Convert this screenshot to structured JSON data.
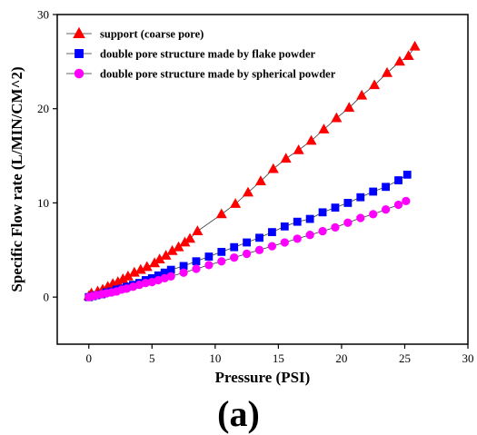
{
  "panel_label": "(a)",
  "chart_data": {
    "type": "scatter",
    "xlabel": "Pressure (PSI)",
    "ylabel": "Specific Flow rate (L/MIN/CM^2)",
    "xlim": [
      -2.5,
      30
    ],
    "ylim": [
      -5,
      30
    ],
    "xticks": [
      0,
      5,
      10,
      15,
      20,
      25,
      30
    ],
    "yticks": [
      0,
      10,
      20,
      30
    ],
    "grid": false,
    "legend_position": "top-left",
    "series": [
      {
        "name": "support (coarse pore)",
        "color": "#ff0000",
        "marker": "triangle",
        "x": [
          0,
          0.2,
          0.7,
          1.1,
          1.5,
          1.9,
          2.3,
          2.7,
          3.1,
          3.6,
          4.1,
          4.6,
          5.2,
          5.6,
          6.1,
          6.6,
          7.1,
          7.6,
          8.0,
          8.6,
          10.5,
          11.6,
          12.6,
          13.6,
          14.6,
          15.6,
          16.6,
          17.6,
          18.6,
          19.6,
          20.6,
          21.6,
          22.6,
          23.6,
          24.6,
          25.3,
          25.8
        ],
        "y": [
          0.1,
          0.4,
          0.6,
          0.8,
          1.1,
          1.4,
          1.6,
          1.9,
          2.2,
          2.6,
          2.9,
          3.2,
          3.6,
          4.0,
          4.4,
          4.9,
          5.3,
          5.8,
          6.2,
          7.0,
          8.8,
          9.9,
          11.1,
          12.3,
          13.6,
          14.7,
          15.6,
          16.6,
          17.8,
          19.0,
          20.1,
          21.4,
          22.5,
          23.8,
          25.0,
          25.6,
          26.6
        ]
      },
      {
        "name": "double pore structure made by flake powder",
        "color": "#0000ff",
        "marker": "square",
        "x": [
          0,
          0.3,
          0.6,
          1.0,
          1.4,
          1.8,
          2.2,
          2.6,
          3.0,
          3.5,
          4.0,
          4.5,
          5.0,
          5.5,
          6.0,
          6.5,
          7.5,
          8.5,
          9.5,
          10.5,
          11.5,
          12.5,
          13.5,
          14.5,
          15.5,
          16.5,
          17.5,
          18.5,
          19.5,
          20.5,
          21.5,
          22.5,
          23.5,
          24.5,
          25.2
        ],
        "y": [
          0,
          0.1,
          0.2,
          0.3,
          0.5,
          0.6,
          0.8,
          0.9,
          1.1,
          1.3,
          1.5,
          1.8,
          2.0,
          2.3,
          2.6,
          2.9,
          3.3,
          3.8,
          4.3,
          4.8,
          5.3,
          5.8,
          6.3,
          6.9,
          7.5,
          8.0,
          8.3,
          9.0,
          9.5,
          10.0,
          10.6,
          11.2,
          11.7,
          12.4,
          13.0
        ]
      },
      {
        "name": "double pore structure made by spherical powder",
        "color": "#ff00ff",
        "marker": "circle",
        "x": [
          0,
          0.3,
          0.6,
          1.0,
          1.4,
          1.8,
          2.2,
          2.6,
          3.0,
          3.5,
          4.0,
          4.5,
          5.0,
          5.5,
          6.0,
          6.5,
          7.5,
          8.5,
          9.5,
          10.5,
          11.5,
          12.5,
          13.5,
          14.5,
          15.5,
          16.5,
          17.5,
          18.5,
          19.5,
          20.5,
          21.5,
          22.5,
          23.5,
          24.5,
          25.1
        ],
        "y": [
          0,
          0.1,
          0.2,
          0.3,
          0.4,
          0.5,
          0.6,
          0.8,
          0.9,
          1.1,
          1.3,
          1.5,
          1.6,
          1.8,
          2.0,
          2.2,
          2.6,
          3.0,
          3.4,
          3.8,
          4.2,
          4.6,
          5.0,
          5.4,
          5.8,
          6.2,
          6.6,
          7.0,
          7.4,
          7.9,
          8.4,
          8.8,
          9.3,
          9.8,
          10.2
        ]
      }
    ]
  }
}
